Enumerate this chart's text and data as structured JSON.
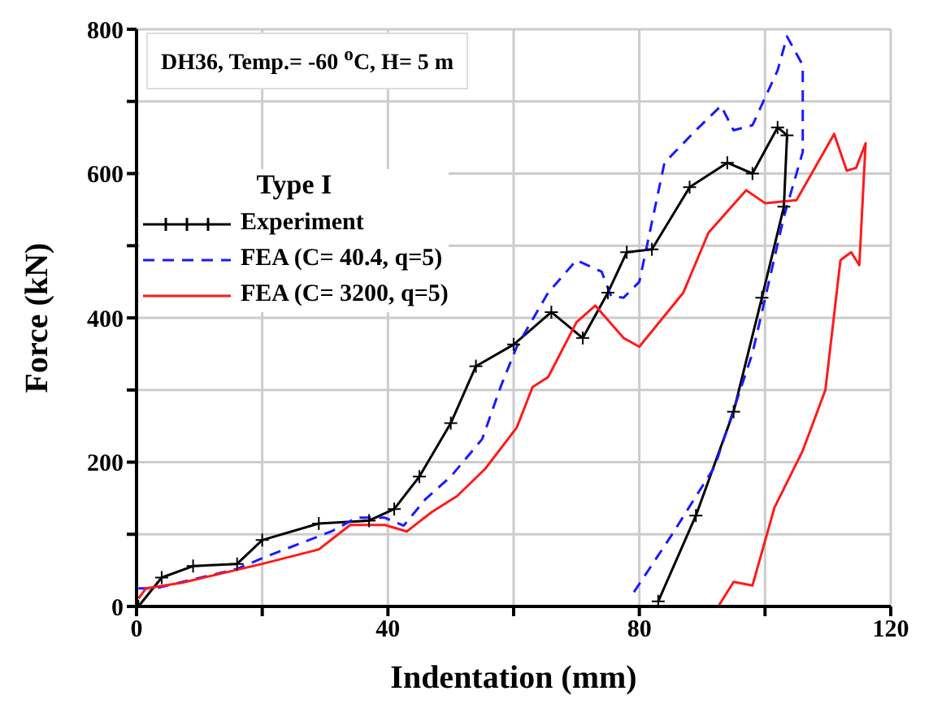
{
  "chart_data": {
    "type": "line",
    "xlabel": "Indentation (mm)",
    "ylabel": "Force (kN)",
    "annotations": [
      "DH36, Temp.= -60 $^{o}$C, H= 5 m"
    ],
    "legend_title": "Type I",
    "legend": "top left",
    "grid": true,
    "xlim": [
      0,
      120
    ],
    "xticks": [
      0,
      {
        "value": 20,
        "label": null
      },
      40,
      {
        "value": 60,
        "label": null
      },
      80,
      {
        "value": 100,
        "label": null
      },
      120
    ],
    "ylim": [
      0,
      800
    ],
    "yticks": [
      0,
      {
        "value": 100,
        "label": null
      },
      200,
      {
        "value": 300,
        "label": null
      },
      400,
      {
        "value": 500,
        "label": null
      },
      600,
      {
        "value": 700,
        "label": null
      },
      800
    ],
    "series": [
      {
        "name": "Experiment",
        "color": "#000000",
        "marker": "cross",
        "line_style": "solid",
        "x": [
          0.3,
          4,
          9,
          16,
          20,
          29,
          37,
          41,
          45,
          50,
          54,
          60,
          66,
          71,
          75,
          78,
          82,
          88,
          94,
          98,
          102,
          103.5,
          103,
          99.5,
          95,
          89,
          83
        ],
        "values": [
          0,
          40,
          56,
          59,
          92,
          115,
          119,
          135,
          180,
          254,
          333,
          363,
          408,
          372,
          435,
          491,
          495,
          581,
          615,
          600,
          664,
          653,
          554,
          428,
          270,
          126,
          7
        ]
      },
      {
        "name": "FEA (C= 40.4, q=5)",
        "color": "#1a1aff",
        "marker": "none",
        "line_style": "dashed",
        "x": [
          0.3,
          3,
          16,
          20,
          31,
          35,
          39.5,
          42.5,
          46,
          50,
          55,
          58,
          60.5,
          65.5,
          70,
          74,
          75.5,
          77.5,
          80,
          84,
          89,
          93,
          95,
          98,
          102,
          103.5,
          106,
          106,
          103,
          98,
          92,
          85,
          79
        ],
        "values": [
          25,
          25,
          52,
          67,
          104,
          123,
          123,
          112,
          149,
          180,
          232,
          306,
          360,
          435,
          480,
          464,
          430,
          428,
          450,
          615,
          660,
          694,
          660,
          667,
          743,
          790,
          750,
          630,
          540,
          351,
          194,
          97,
          18
        ]
      },
      {
        "name": "FEA (C= 3200, q=5)",
        "color": "#ff1a1a",
        "marker": "none",
        "line_style": "solid",
        "x": [
          0.3,
          1.5,
          7.3,
          20,
          29,
          34,
          39.5,
          43,
          47,
          51,
          55.5,
          60.5,
          63,
          65.5,
          70,
          73,
          77.5,
          80,
          87,
          91,
          97,
          100,
          105,
          111,
          113,
          114.5,
          116,
          115,
          113.7,
          112,
          109.6,
          106,
          101.5,
          98,
          95,
          92.7
        ],
        "values": [
          11,
          25,
          33,
          59,
          79,
          113,
          113,
          104,
          131,
          153,
          191,
          248,
          304,
          318,
          394,
          417,
          372,
          360,
          435,
          518,
          577,
          559,
          563,
          655,
          604,
          608,
          642,
          473,
          491,
          480,
          300,
          216,
          137,
          29,
          34,
          2
        ]
      }
    ]
  }
}
